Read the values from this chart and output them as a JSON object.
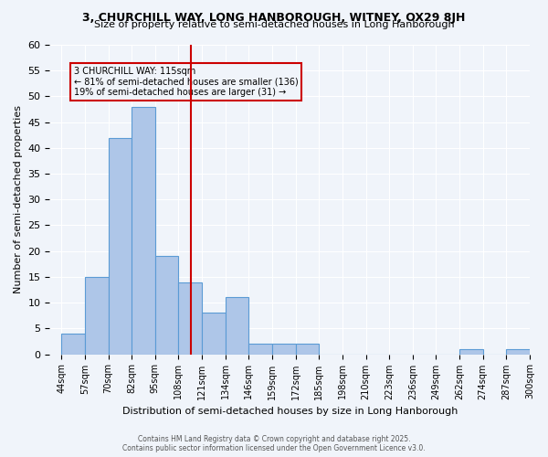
{
  "title": "3, CHURCHILL WAY, LONG HANBOROUGH, WITNEY, OX29 8JH",
  "subtitle": "Size of property relative to semi-detached houses in Long Hanborough",
  "xlabel": "Distribution of semi-detached houses by size in Long Hanborough",
  "ylabel": "Number of semi-detached properties",
  "bins": [
    44,
    57,
    70,
    82,
    95,
    108,
    121,
    134,
    146,
    159,
    172,
    185,
    198,
    210,
    223,
    236,
    249,
    262,
    274,
    287,
    300
  ],
  "bin_labels": [
    "44sqm",
    "57sqm",
    "70sqm",
    "82sqm",
    "95sqm",
    "108sqm",
    "121sqm",
    "134sqm",
    "146sqm",
    "159sqm",
    "172sqm",
    "185sqm",
    "198sqm",
    "210sqm",
    "223sqm",
    "236sqm",
    "249sqm",
    "262sqm",
    "274sqm",
    "287sqm",
    "300sqm"
  ],
  "counts": [
    4,
    15,
    42,
    48,
    19,
    14,
    8,
    11,
    2,
    2,
    2,
    0,
    0,
    0,
    0,
    0,
    0,
    1,
    0,
    1
  ],
  "bar_color": "#aec6e8",
  "bar_edge_color": "#5b9bd5",
  "vline_x": 115,
  "vline_color": "#cc0000",
  "annotation_title": "3 CHURCHILL WAY: 115sqm",
  "annotation_line1": "← 81% of semi-detached houses are smaller (136)",
  "annotation_line2": "19% of semi-detached houses are larger (31) →",
  "annotation_box_color": "#cc0000",
  "ylim": [
    0,
    60
  ],
  "yticks": [
    0,
    5,
    10,
    15,
    20,
    25,
    30,
    35,
    40,
    45,
    50,
    55,
    60
  ],
  "background_color": "#f0f4fa",
  "footer": "Contains HM Land Registry data © Crown copyright and database right 2025.\nContains public sector information licensed under the Open Government Licence v3.0."
}
